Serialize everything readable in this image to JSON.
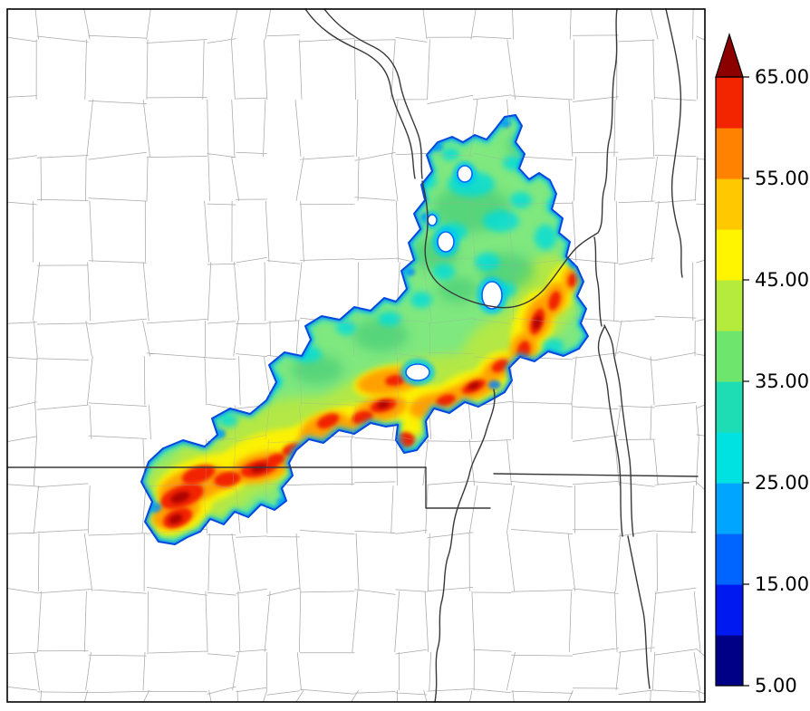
{
  "chart_data": {
    "type": "heatmap",
    "title": "",
    "xlabel": "",
    "ylabel": "",
    "legend": "none",
    "grid": "county and state boundary overlay",
    "field_description": "Irregular basin-shaped shaded region oriented SW-NE over a county map; interior mostly green (~35-45) with a yellow band (~45-50) and elongated orange-red maxima (55-65+) along its axis; cyan-blue fringe (~20-30) at the region edge; several small white no-data holes",
    "value_range": [
      5,
      65
    ],
    "colorbar": {
      "orientation": "vertical",
      "side": "right",
      "ticks": [
        "65.00",
        "55.00",
        "45.00",
        "35.00",
        "25.00",
        "15.00",
        "5.00"
      ],
      "tick_values": [
        65,
        55,
        45,
        35,
        25,
        15,
        5
      ],
      "min": 5,
      "max": 65,
      "segment_step": 5,
      "over_arrow": true,
      "over_color": "#8C0000",
      "segment_colors_bottom_to_top": [
        "#000087",
        "#0019F0",
        "#0064FF",
        "#00A5FF",
        "#00E1E1",
        "#1EDCB4",
        "#6EE66E",
        "#B4EB3C",
        "#FFF500",
        "#FFC800",
        "#FF8200",
        "#F22500"
      ]
    },
    "colors": {
      "frame": "#000000",
      "county_lines": "#a8a8a8",
      "state_river_lines": "#383838",
      "region_rim": "#0048E0",
      "background": "#ffffff"
    }
  }
}
